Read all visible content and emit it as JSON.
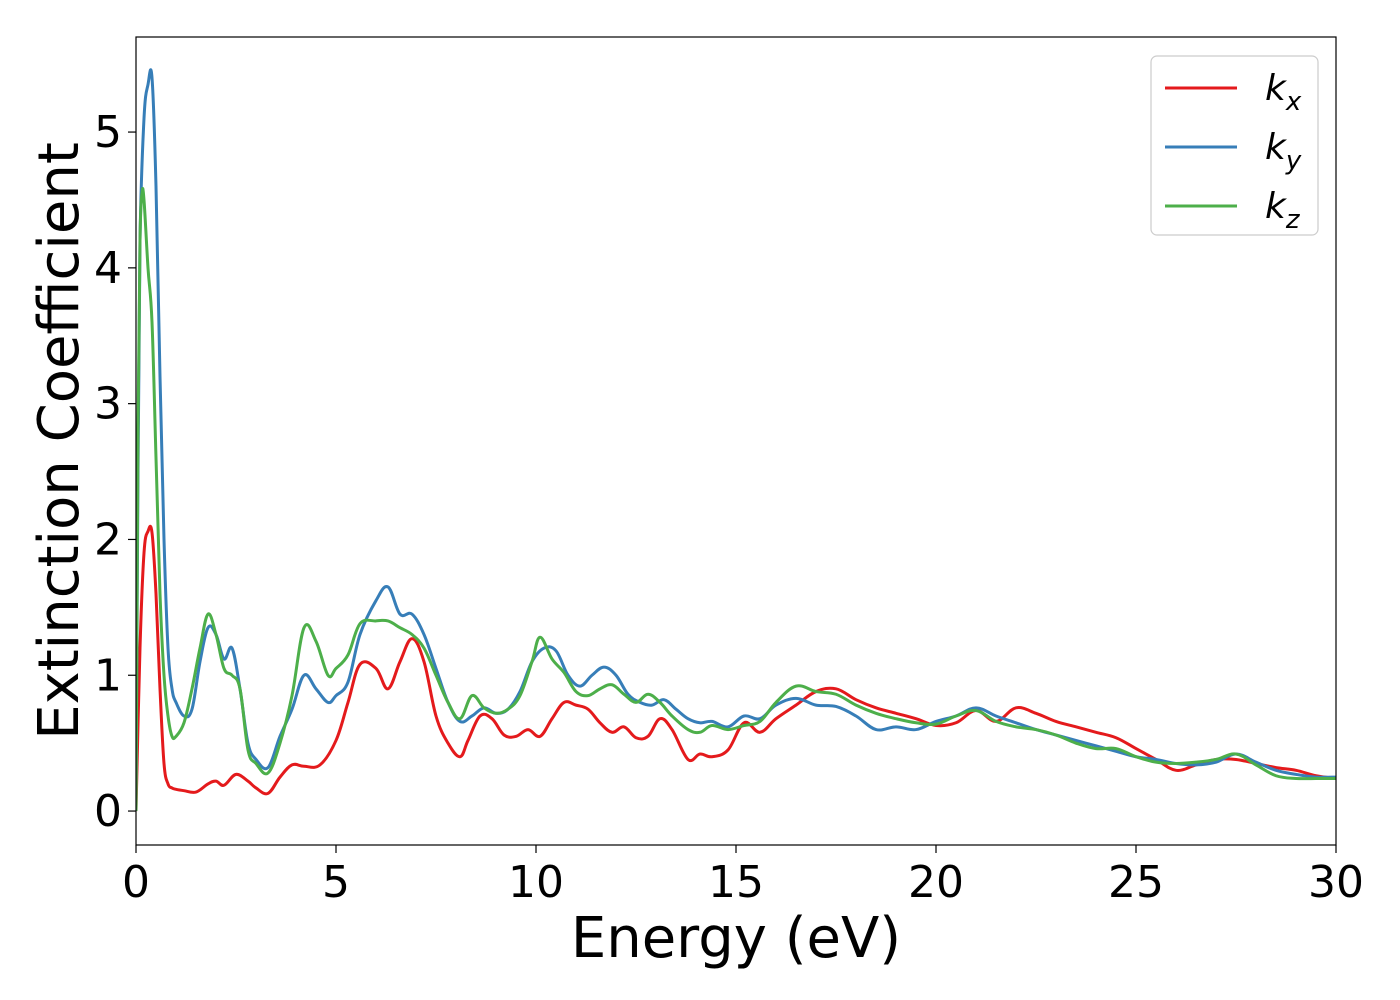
{
  "chart_data": {
    "type": "line",
    "xlabel": "Energy (eV)",
    "ylabel": "Extinction Coefficient",
    "xlim": [
      0,
      30
    ],
    "ylim": [
      -0.25,
      5.7
    ],
    "xticks": [
      0,
      5,
      10,
      15,
      20,
      25,
      30
    ],
    "yticks": [
      0,
      1,
      2,
      3,
      4,
      5
    ],
    "grid": false,
    "legend_position": "top-right",
    "series": [
      {
        "name": "k_x",
        "label_main": "k",
        "label_sub": "x",
        "color": "#e41a1c",
        "x": [
          0,
          0.1,
          0.2,
          0.3,
          0.4,
          0.5,
          0.6,
          0.7,
          0.8,
          0.9,
          1.0,
          1.2,
          1.5,
          1.8,
          2.0,
          2.2,
          2.5,
          2.8,
          3.0,
          3.3,
          3.6,
          3.9,
          4.2,
          4.6,
          5.0,
          5.3,
          5.6,
          6.0,
          6.3,
          6.6,
          6.9,
          7.2,
          7.5,
          7.8,
          8.1,
          8.3,
          8.6,
          8.9,
          9.2,
          9.5,
          9.8,
          10.1,
          10.4,
          10.7,
          11.0,
          11.3,
          11.6,
          11.9,
          12.2,
          12.5,
          12.8,
          13.1,
          13.4,
          13.8,
          14.1,
          14.4,
          14.8,
          15.2,
          15.6,
          16.0,
          16.5,
          17.0,
          17.5,
          18.0,
          18.5,
          19.0,
          19.5,
          20.0,
          20.5,
          21.0,
          21.5,
          22.0,
          22.5,
          23.0,
          23.5,
          24.0,
          24.5,
          25.0,
          25.5,
          26.0,
          26.5,
          27.0,
          27.5,
          28.0,
          28.5,
          29.0,
          29.5,
          30.0
        ],
        "y": [
          0.0,
          1.2,
          1.9,
          2.06,
          2.05,
          1.6,
          0.9,
          0.35,
          0.2,
          0.17,
          0.16,
          0.15,
          0.14,
          0.2,
          0.22,
          0.19,
          0.27,
          0.22,
          0.17,
          0.13,
          0.25,
          0.34,
          0.33,
          0.34,
          0.52,
          0.8,
          1.08,
          1.05,
          0.9,
          1.1,
          1.27,
          1.1,
          0.7,
          0.5,
          0.4,
          0.52,
          0.7,
          0.68,
          0.56,
          0.55,
          0.6,
          0.55,
          0.68,
          0.8,
          0.78,
          0.75,
          0.65,
          0.58,
          0.62,
          0.54,
          0.55,
          0.68,
          0.6,
          0.38,
          0.42,
          0.4,
          0.45,
          0.65,
          0.58,
          0.68,
          0.78,
          0.88,
          0.9,
          0.82,
          0.76,
          0.72,
          0.68,
          0.63,
          0.65,
          0.74,
          0.66,
          0.76,
          0.72,
          0.66,
          0.62,
          0.58,
          0.54,
          0.46,
          0.38,
          0.3,
          0.34,
          0.38,
          0.38,
          0.35,
          0.32,
          0.3,
          0.26,
          0.24
        ]
      },
      {
        "name": "k_y",
        "label_main": "k",
        "label_sub": "y",
        "color": "#377eb8",
        "x": [
          0,
          0.05,
          0.1,
          0.2,
          0.3,
          0.4,
          0.5,
          0.6,
          0.7,
          0.8,
          0.9,
          1.0,
          1.2,
          1.4,
          1.6,
          1.8,
          2.0,
          2.2,
          2.4,
          2.6,
          2.8,
          3.0,
          3.3,
          3.6,
          3.9,
          4.2,
          4.5,
          4.8,
          5.0,
          5.3,
          5.6,
          6.0,
          6.3,
          6.6,
          6.9,
          7.2,
          7.5,
          7.8,
          8.1,
          8.4,
          8.7,
          9.0,
          9.3,
          9.6,
          9.9,
          10.2,
          10.5,
          10.8,
          11.1,
          11.4,
          11.7,
          12.0,
          12.3,
          12.6,
          12.9,
          13.2,
          13.5,
          13.8,
          14.1,
          14.4,
          14.8,
          15.2,
          15.6,
          16.0,
          16.5,
          17.0,
          17.5,
          18.0,
          18.5,
          19.0,
          19.5,
          20.0,
          20.5,
          21.0,
          21.5,
          22.0,
          22.5,
          23.0,
          23.5,
          24.0,
          24.5,
          25.0,
          25.5,
          26.0,
          26.5,
          27.0,
          27.5,
          28.0,
          28.5,
          29.0,
          29.5,
          30.0
        ],
        "y": [
          0.0,
          2.5,
          4.2,
          5.1,
          5.35,
          5.4,
          4.6,
          3.2,
          2.0,
          1.2,
          0.9,
          0.8,
          0.7,
          0.75,
          1.1,
          1.35,
          1.3,
          1.12,
          1.2,
          0.9,
          0.5,
          0.38,
          0.32,
          0.55,
          0.75,
          1.0,
          0.9,
          0.8,
          0.85,
          0.95,
          1.3,
          1.55,
          1.65,
          1.45,
          1.45,
          1.3,
          1.05,
          0.8,
          0.66,
          0.7,
          0.76,
          0.72,
          0.75,
          0.88,
          1.1,
          1.2,
          1.18,
          1.0,
          0.92,
          1.0,
          1.06,
          1.0,
          0.86,
          0.8,
          0.78,
          0.82,
          0.75,
          0.68,
          0.65,
          0.66,
          0.62,
          0.7,
          0.68,
          0.78,
          0.83,
          0.78,
          0.77,
          0.7,
          0.6,
          0.62,
          0.6,
          0.66,
          0.7,
          0.76,
          0.7,
          0.65,
          0.6,
          0.56,
          0.52,
          0.48,
          0.44,
          0.4,
          0.38,
          0.35,
          0.34,
          0.36,
          0.42,
          0.36,
          0.3,
          0.27,
          0.25,
          0.25
        ]
      },
      {
        "name": "k_z",
        "label_main": "k",
        "label_sub": "z",
        "color": "#4daf4a",
        "x": [
          0,
          0.05,
          0.1,
          0.15,
          0.2,
          0.3,
          0.4,
          0.5,
          0.6,
          0.7,
          0.8,
          0.9,
          1.0,
          1.2,
          1.4,
          1.6,
          1.8,
          2.0,
          2.2,
          2.4,
          2.6,
          2.8,
          3.0,
          3.3,
          3.6,
          3.9,
          4.2,
          4.5,
          4.8,
          5.0,
          5.3,
          5.6,
          6.0,
          6.3,
          6.6,
          6.9,
          7.2,
          7.5,
          7.8,
          8.1,
          8.4,
          8.7,
          9.0,
          9.3,
          9.6,
          9.9,
          10.1,
          10.4,
          10.7,
          11.0,
          11.3,
          11.6,
          11.9,
          12.2,
          12.5,
          12.8,
          13.1,
          13.4,
          13.8,
          14.1,
          14.4,
          14.8,
          15.2,
          15.6,
          16.0,
          16.5,
          17.0,
          17.5,
          18.0,
          18.5,
          19.0,
          19.5,
          20.0,
          20.5,
          21.0,
          21.5,
          22.0,
          22.5,
          23.0,
          23.5,
          24.0,
          24.5,
          25.0,
          25.5,
          26.0,
          26.5,
          27.0,
          27.5,
          28.0,
          28.5,
          29.0,
          29.5,
          30.0
        ],
        "y": [
          0.0,
          2.8,
          4.2,
          4.55,
          4.5,
          4.0,
          3.6,
          2.6,
          1.6,
          1.0,
          0.7,
          0.55,
          0.55,
          0.65,
          0.9,
          1.2,
          1.45,
          1.3,
          1.05,
          1.0,
          0.9,
          0.45,
          0.35,
          0.28,
          0.5,
          0.85,
          1.35,
          1.25,
          1.0,
          1.05,
          1.15,
          1.38,
          1.4,
          1.4,
          1.35,
          1.3,
          1.2,
          1.0,
          0.8,
          0.68,
          0.85,
          0.76,
          0.72,
          0.75,
          0.85,
          1.1,
          1.28,
          1.12,
          1.02,
          0.88,
          0.85,
          0.9,
          0.93,
          0.86,
          0.8,
          0.86,
          0.8,
          0.7,
          0.6,
          0.58,
          0.63,
          0.6,
          0.63,
          0.66,
          0.8,
          0.92,
          0.88,
          0.86,
          0.78,
          0.72,
          0.68,
          0.65,
          0.64,
          0.7,
          0.74,
          0.66,
          0.62,
          0.6,
          0.56,
          0.5,
          0.46,
          0.46,
          0.4,
          0.36,
          0.35,
          0.36,
          0.38,
          0.42,
          0.34,
          0.26,
          0.24,
          0.24,
          0.24
        ]
      }
    ]
  }
}
